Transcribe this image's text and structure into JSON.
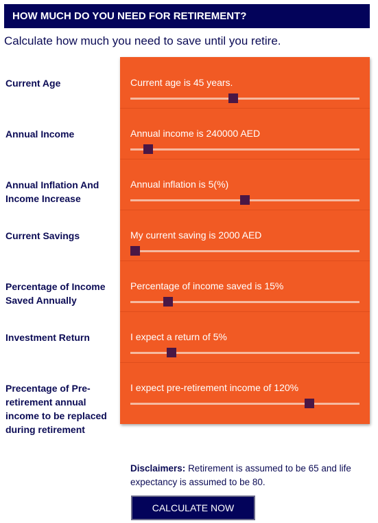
{
  "header": {
    "title": "HOW MUCH DO YOU NEED FOR RETIREMENT?"
  },
  "subtitle": "Calculate how much you need to save until you retire.",
  "fields": [
    {
      "label": "Current Age",
      "slider_text": "Current age is 45 years."
    },
    {
      "label": "Annual Income",
      "slider_text": "Annual income is 240000 AED"
    },
    {
      "label": "Annual Inflation And Income Increase",
      "slider_text": "Annual inflation is 5(%)"
    },
    {
      "label": "Current Savings",
      "slider_text": "My current saving is 2000 AED"
    },
    {
      "label": "Percentage of Income Saved Annually",
      "slider_text": "Percentage of income saved is 15%"
    },
    {
      "label": "Investment Return",
      "slider_text": "I expect a return of 5%"
    },
    {
      "label": "Precentage of Pre-retirement annual income to be replaced during retirement",
      "slider_text": "I expect pre-retirement income of 120%"
    }
  ],
  "disclaimer": {
    "label": "Disclaimers:",
    "text": "Retirement is assumed to be 65 and life expectancy is assumed to be 80."
  },
  "button": {
    "label": "CALCULATE NOW"
  }
}
